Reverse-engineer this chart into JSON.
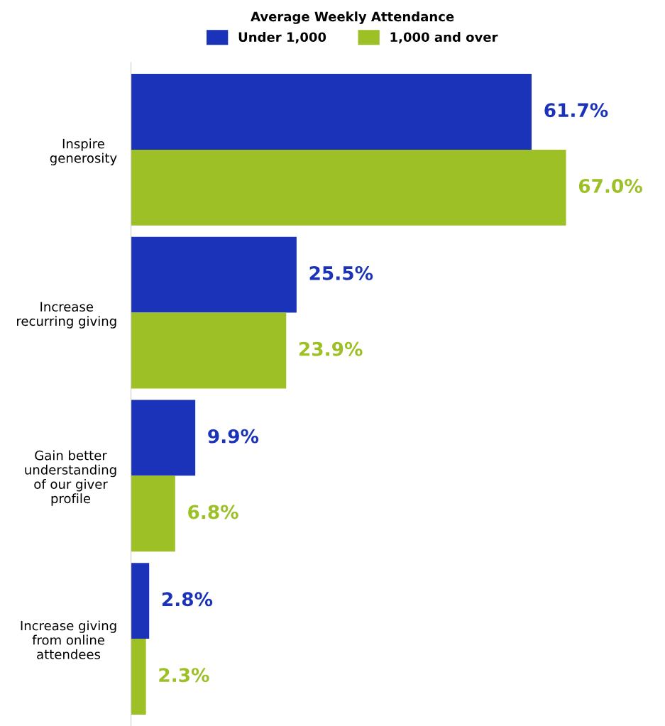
{
  "chart_data": {
    "type": "bar",
    "orientation": "horizontal",
    "legend_title": "Average Weekly Attendance",
    "legend": "top",
    "categories": [
      "Inspire\ngenerosity",
      "Increase\nrecurring giving",
      "Gain better\nunderstanding\nof our giver\nprofile",
      "Increase giving\nfrom online\nattendees"
    ],
    "series": [
      {
        "name": "Under 1,000",
        "color": "#1a33b8",
        "values": [
          61.7,
          25.5,
          9.9,
          2.8
        ],
        "value_labels": [
          "61.7%",
          "25.5%",
          "9.9%",
          "2.8%"
        ]
      },
      {
        "name": "1,000 and over",
        "color": "#9dc027",
        "values": [
          67.0,
          23.9,
          6.8,
          2.3
        ],
        "value_labels": [
          "67.0%",
          "23.9%",
          "6.8%",
          "2.3%"
        ]
      }
    ],
    "tick_labels": "y",
    "grid": false
  }
}
